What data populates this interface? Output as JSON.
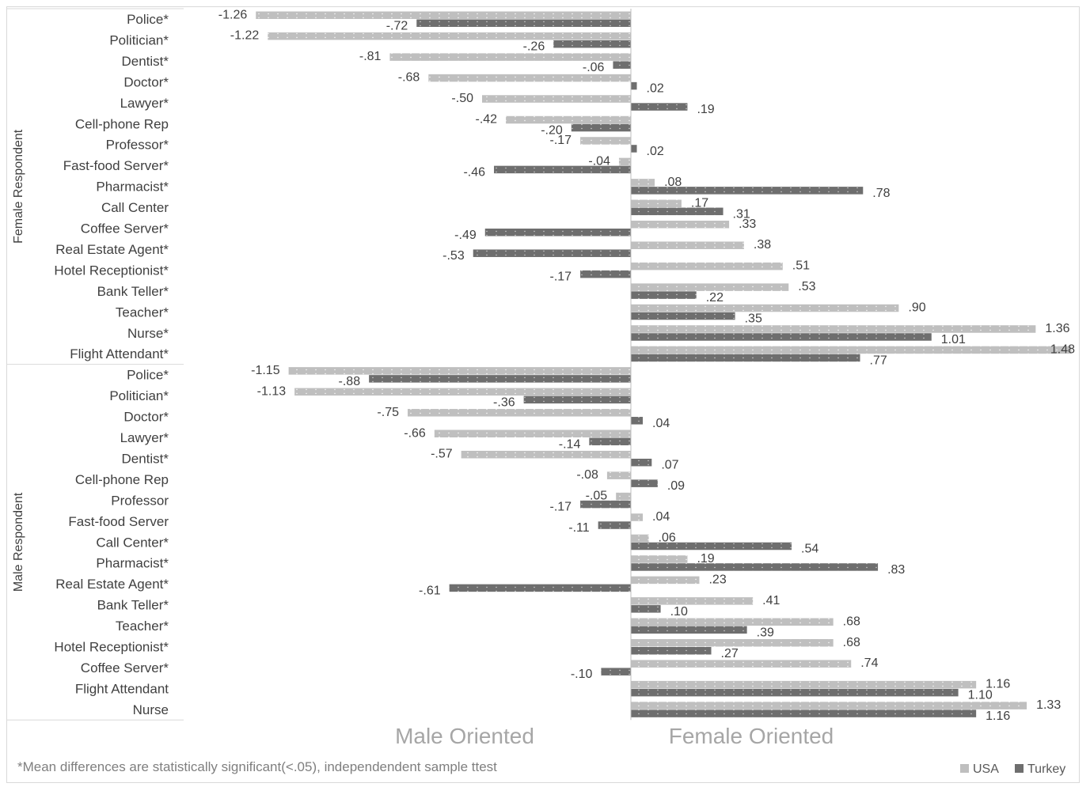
{
  "chart_data": {
    "type": "bar",
    "orientation": "horizontal",
    "groups": [
      {
        "label": "Female Respondent",
        "rows": [
          {
            "category": "Police*",
            "usa": -1.26,
            "turkey": -0.72,
            "usa_label": "-1.26",
            "turkey_label": "-.72"
          },
          {
            "category": "Politician*",
            "usa": -1.22,
            "turkey": -0.26,
            "usa_label": "-1.22",
            "turkey_label": "-.26"
          },
          {
            "category": "Dentist*",
            "usa": -0.81,
            "turkey": -0.06,
            "usa_label": "-.81",
            "turkey_label": "-.06"
          },
          {
            "category": "Doctor*",
            "usa": -0.68,
            "turkey": 0.02,
            "usa_label": "-.68",
            "turkey_label": ".02"
          },
          {
            "category": "Lawyer*",
            "usa": -0.5,
            "turkey": 0.19,
            "usa_label": "-.50",
            "turkey_label": ".19"
          },
          {
            "category": "Cell-phone Rep",
            "usa": -0.42,
            "turkey": -0.2,
            "usa_label": "-.42",
            "turkey_label": "-.20"
          },
          {
            "category": "Professor*",
            "usa": -0.17,
            "turkey": 0.02,
            "usa_label": "-.17",
            "turkey_label": ".02"
          },
          {
            "category": "Fast-food Server*",
            "usa": -0.04,
            "turkey": -0.46,
            "usa_label": "-.04",
            "turkey_label": "-.46"
          },
          {
            "category": "Pharmacist*",
            "usa": 0.08,
            "turkey": 0.78,
            "usa_label": ".08",
            "turkey_label": ".78"
          },
          {
            "category": "Call Center",
            "usa": 0.17,
            "turkey": 0.31,
            "usa_label": ".17",
            "turkey_label": ".31"
          },
          {
            "category": "Coffee Server*",
            "usa": 0.33,
            "turkey": -0.49,
            "usa_label": ".33",
            "turkey_label": "-.49"
          },
          {
            "category": "Real Estate Agent*",
            "usa": 0.38,
            "turkey": -0.53,
            "usa_label": ".38",
            "turkey_label": "-.53"
          },
          {
            "category": "Hotel Receptionist*",
            "usa": 0.51,
            "turkey": -0.17,
            "usa_label": ".51",
            "turkey_label": "-.17"
          },
          {
            "category": "Bank Teller*",
            "usa": 0.53,
            "turkey": 0.22,
            "usa_label": ".53",
            "turkey_label": ".22"
          },
          {
            "category": "Teacher*",
            "usa": 0.9,
            "turkey": 0.35,
            "usa_label": ".90",
            "turkey_label": ".35"
          },
          {
            "category": "Nurse*",
            "usa": 1.36,
            "turkey": 1.01,
            "usa_label": "1.36",
            "turkey_label": "1.01"
          },
          {
            "category": "Flight Attendant*",
            "usa": 1.48,
            "turkey": 0.77,
            "usa_label": "1.48",
            "turkey_label": ".77"
          }
        ]
      },
      {
        "label": "Male Respondent",
        "rows": [
          {
            "category": "Police*",
            "usa": -1.15,
            "turkey": -0.88,
            "usa_label": "-1.15",
            "turkey_label": "-.88"
          },
          {
            "category": "Politician*",
            "usa": -1.13,
            "turkey": -0.36,
            "usa_label": "-1.13",
            "turkey_label": "-.36"
          },
          {
            "category": "Doctor*",
            "usa": -0.75,
            "turkey": 0.04,
            "usa_label": "-.75",
            "turkey_label": ".04"
          },
          {
            "category": "Lawyer*",
            "usa": -0.66,
            "turkey": -0.14,
            "usa_label": "-.66",
            "turkey_label": "-.14"
          },
          {
            "category": "Dentist*",
            "usa": -0.57,
            "turkey": 0.07,
            "usa_label": "-.57",
            "turkey_label": ".07"
          },
          {
            "category": "Cell-phone Rep",
            "usa": -0.08,
            "turkey": 0.09,
            "usa_label": "-.08",
            "turkey_label": ".09"
          },
          {
            "category": "Professor",
            "usa": -0.05,
            "turkey": -0.17,
            "usa_label": "-.05",
            "turkey_label": "-.17"
          },
          {
            "category": "Fast-food Server",
            "usa": 0.04,
            "turkey": -0.11,
            "usa_label": ".04",
            "turkey_label": "-.11"
          },
          {
            "category": "Call Center*",
            "usa": 0.06,
            "turkey": 0.54,
            "usa_label": ".06",
            "turkey_label": ".54"
          },
          {
            "category": "Pharmacist*",
            "usa": 0.19,
            "turkey": 0.83,
            "usa_label": ".19",
            "turkey_label": ".83"
          },
          {
            "category": "Real Estate Agent*",
            "usa": 0.23,
            "turkey": -0.61,
            "usa_label": ".23",
            "turkey_label": "-.61"
          },
          {
            "category": "Bank Teller*",
            "usa": 0.41,
            "turkey": 0.1,
            "usa_label": ".41",
            "turkey_label": ".10"
          },
          {
            "category": "Teacher*",
            "usa": 0.68,
            "turkey": 0.39,
            "usa_label": ".68",
            "turkey_label": ".39"
          },
          {
            "category": "Hotel Receptionist*",
            "usa": 0.68,
            "turkey": 0.27,
            "usa_label": ".68",
            "turkey_label": ".27"
          },
          {
            "category": "Coffee Server*",
            "usa": 0.74,
            "turkey": -0.1,
            "usa_label": ".74",
            "turkey_label": "-.10"
          },
          {
            "category": "Flight Attendant",
            "usa": 1.16,
            "turkey": 1.1,
            "usa_label": "1.16",
            "turkey_label": "1.10"
          },
          {
            "category": "Nurse",
            "usa": 1.33,
            "turkey": 1.16,
            "usa_label": "1.33",
            "turkey_label": "1.16"
          }
        ]
      }
    ],
    "series": [
      {
        "key": "usa",
        "name": "USA",
        "color": "#bfbfbf"
      },
      {
        "key": "turkey",
        "name": "Turkey",
        "color": "#6e6e6e"
      }
    ],
    "xlim": [
      -1.26,
      1.48
    ],
    "left_label": "Male Oriented",
    "right_label": "Female Oriented",
    "footnote": "*Mean differences are statistically significant(<.05), independendent sample ttest",
    "legend_position": "bottom-right",
    "grid": false
  }
}
